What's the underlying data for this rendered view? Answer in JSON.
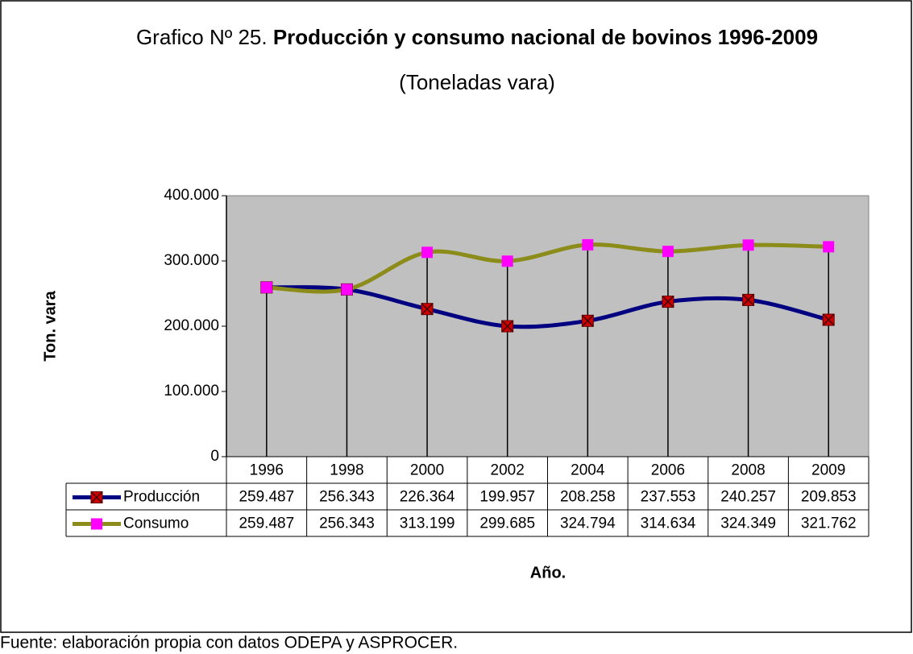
{
  "chart_data": {
    "type": "line",
    "title_prefix": "Grafico Nº 25.",
    "title": "Producción y consumo nacional de bovinos 1996-2009",
    "subtitle": "(Toneladas vara)",
    "ylabel": "Ton. vara",
    "xlabel": "Año.",
    "source": "Fuente: elaboración propia con datos ODEPA y ASPROCER.",
    "categories": [
      "1996",
      "1998",
      "2000",
      "2002",
      "2004",
      "2006",
      "2008",
      "2009"
    ],
    "series": [
      {
        "name": "Producción",
        "color": "#000080",
        "marker_color": "#cc0000",
        "values": [
          259487,
          256343,
          226364,
          199957,
          208258,
          237553,
          240257,
          209853
        ],
        "value_labels": [
          "259.487",
          "256.343",
          "226.364",
          "199.957",
          "208.258",
          "237.553",
          "240.257",
          "209.853"
        ]
      },
      {
        "name": "Consumo",
        "color": "#8c8c1a",
        "marker_color": "#ff00ff",
        "values": [
          259487,
          256343,
          313199,
          299685,
          324794,
          314634,
          324349,
          321762
        ],
        "value_labels": [
          "259.487",
          "256.343",
          "313.199",
          "299.685",
          "324.794",
          "314.634",
          "324.349",
          "321.762"
        ]
      }
    ],
    "ylim": [
      0,
      400000
    ],
    "yticks": [
      0,
      {
        "value": 100000,
        "label": "100.000"
      },
      {
        "value": 200000,
        "label": "200.000"
      },
      {
        "value": 300000,
        "label": "300.000"
      },
      {
        "value": 400000,
        "label": "400.000"
      }
    ],
    "plot_background": "#c0c0c0"
  }
}
